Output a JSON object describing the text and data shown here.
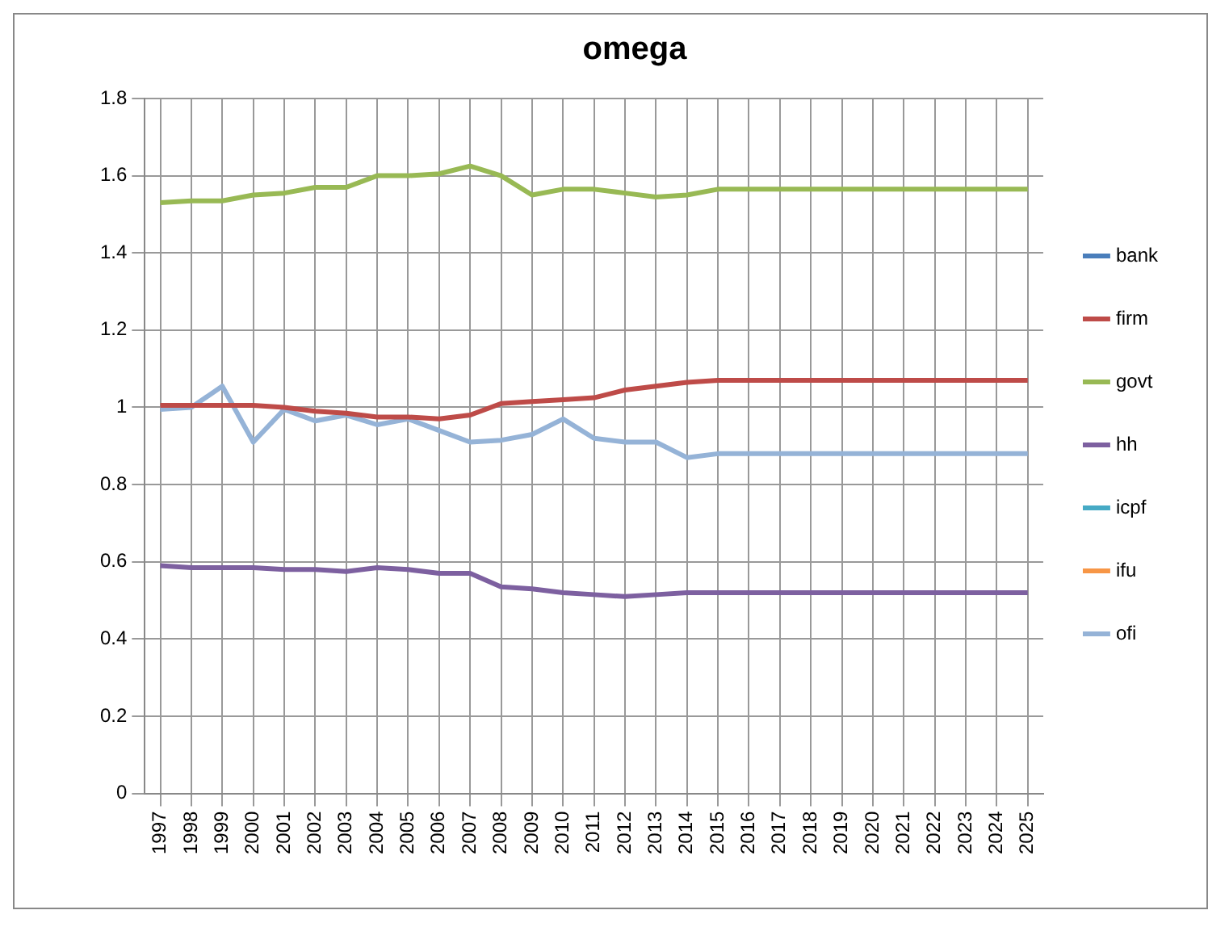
{
  "chart_data": {
    "type": "line",
    "title": "omega",
    "categories": [
      "1997",
      "1998",
      "1999",
      "2000",
      "2001",
      "2002",
      "2003",
      "2004",
      "2005",
      "2006",
      "2007",
      "2008",
      "2009",
      "2010",
      "2011",
      "2012",
      "2013",
      "2014",
      "2015",
      "2016",
      "2017",
      "2018",
      "2019",
      "2020",
      "2021",
      "2022",
      "2023",
      "2024",
      "2025"
    ],
    "ylim": [
      0,
      1.8
    ],
    "yticks": [
      0,
      0.2,
      0.4,
      0.6,
      0.8,
      1,
      1.2,
      1.4,
      1.6,
      1.8
    ],
    "grid": true,
    "legend": "right",
    "marker": "none",
    "line_style": "solid",
    "series": [
      {
        "name": "bank",
        "color": "#4a7ebb",
        "values": [
          null,
          null,
          null,
          null,
          null,
          null,
          null,
          null,
          null,
          null,
          null,
          null,
          null,
          null,
          null,
          null,
          null,
          null,
          null,
          null,
          null,
          null,
          null,
          null,
          null,
          null,
          null,
          null,
          null
        ]
      },
      {
        "name": "firm",
        "color": "#be4b48",
        "values": [
          1.005,
          1.005,
          1.005,
          1.005,
          1.0,
          0.99,
          0.985,
          0.975,
          0.975,
          0.97,
          0.98,
          1.01,
          1.015,
          1.02,
          1.025,
          1.045,
          1.055,
          1.065,
          1.07,
          1.07,
          1.07,
          1.07,
          1.07,
          1.07,
          1.07,
          1.07,
          1.07,
          1.07,
          1.07
        ]
      },
      {
        "name": "govt",
        "color": "#98b954",
        "values": [
          1.53,
          1.535,
          1.535,
          1.55,
          1.555,
          1.57,
          1.57,
          1.6,
          1.6,
          1.605,
          1.625,
          1.6,
          1.55,
          1.565,
          1.565,
          1.555,
          1.545,
          1.55,
          1.565,
          1.565,
          1.565,
          1.565,
          1.565,
          1.565,
          1.565,
          1.565,
          1.565,
          1.565,
          1.565
        ]
      },
      {
        "name": "hh",
        "color": "#7d60a0",
        "values": [
          0.59,
          0.585,
          0.585,
          0.585,
          0.58,
          0.58,
          0.575,
          0.585,
          0.58,
          0.57,
          0.57,
          0.535,
          0.53,
          0.52,
          0.515,
          0.51,
          0.515,
          0.52,
          0.52,
          0.52,
          0.52,
          0.52,
          0.52,
          0.52,
          0.52,
          0.52,
          0.52,
          0.52,
          0.52
        ]
      },
      {
        "name": "icpf",
        "color": "#46aac5",
        "values": [
          null,
          null,
          null,
          null,
          null,
          null,
          null,
          null,
          null,
          null,
          null,
          null,
          null,
          null,
          null,
          null,
          null,
          null,
          null,
          null,
          null,
          null,
          null,
          null,
          null,
          null,
          null,
          null,
          null
        ]
      },
      {
        "name": "ifu",
        "color": "#f79646",
        "values": [
          null,
          null,
          null,
          null,
          null,
          null,
          null,
          null,
          null,
          null,
          null,
          null,
          null,
          null,
          null,
          null,
          null,
          null,
          null,
          null,
          null,
          null,
          null,
          null,
          null,
          null,
          null,
          null,
          null
        ]
      },
      {
        "name": "ofi",
        "color": "#95b3d7",
        "values": [
          0.995,
          1.0,
          1.055,
          0.91,
          0.995,
          0.965,
          0.98,
          0.955,
          0.97,
          0.94,
          0.91,
          0.915,
          0.93,
          0.97,
          0.92,
          0.91,
          0.91,
          0.87,
          0.88,
          0.88,
          0.88,
          0.88,
          0.88,
          0.88,
          0.88,
          0.88,
          0.88,
          0.88,
          0.88
        ]
      }
    ]
  }
}
